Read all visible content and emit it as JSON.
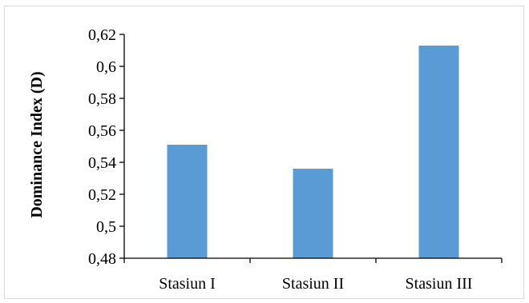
{
  "chart_data": {
    "type": "bar",
    "categories": [
      "Stasiun I",
      "Stasiun II",
      "Stasiun III"
    ],
    "values": [
      0.551,
      0.536,
      0.613
    ],
    "title": "",
    "xlabel": "",
    "ylabel": "Dominance Index (D)",
    "ylim": [
      0.48,
      0.62
    ],
    "yticks": [
      "0,48",
      "0,5",
      "0,52",
      "0,54",
      "0,56",
      "0,58",
      "0,6",
      "0,62"
    ],
    "grid": false,
    "legend": "none",
    "bar_color": "#5b9bd5"
  }
}
